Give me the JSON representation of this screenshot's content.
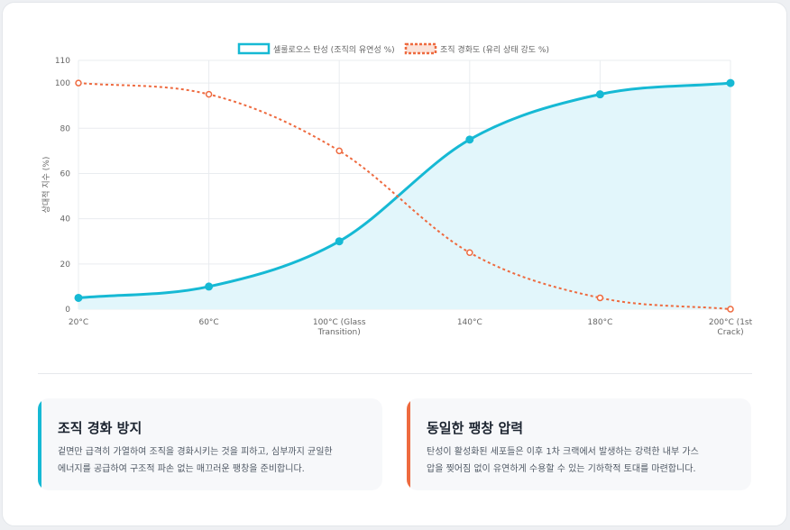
{
  "colors": {
    "elasticity": "#16b9d4",
    "elasticity_fill": "#e2f6fb",
    "hardening": "#ee6a3f",
    "grid": "#e9ecef",
    "axis_text": "#666666",
    "card1_accent": "#16b9d4",
    "card2_accent": "#ee6a3f"
  },
  "chart_data": {
    "type": "line",
    "title": "",
    "xlabel": "",
    "ylabel": "상대적 지수 (%)",
    "categories": [
      "20°C",
      "60°C",
      "100°C (Glass Transition)",
      "140°C",
      "180°C",
      "200°C (1st Crack)"
    ],
    "x_tick_lines": [
      [
        "20°C"
      ],
      [
        "60°C"
      ],
      [
        "100°C (Glass",
        "Transition)"
      ],
      [
        "140°C"
      ],
      [
        "180°C"
      ],
      [
        "200°C (1st",
        "Crack)"
      ]
    ],
    "ylim": [
      0,
      110
    ],
    "yticks": [
      0,
      20,
      40,
      60,
      80,
      100,
      110
    ],
    "grid": true,
    "legend_position": "top",
    "series": [
      {
        "name": "셀룰로오스 탄성 (조직의 유연성 %)",
        "values": [
          5,
          10,
          30,
          75,
          95,
          100
        ],
        "style": "solid-filled"
      },
      {
        "name": "조직 경화도 (유리 상태 강도 %)",
        "values": [
          100,
          95,
          70,
          25,
          5,
          0
        ],
        "style": "dashed"
      }
    ]
  },
  "cards": [
    {
      "title": "조직 경화 방지",
      "lines": [
        "겉면만 급격히 가열하여 조직을 경화시키는 것을 피하고, 심부까지 균일한",
        "에너지를 공급하여 구조적 파손 없는 매끄러운 팽창을 준비합니다."
      ]
    },
    {
      "title": "동일한 팽창 압력",
      "lines": [
        "탄성이 활성화된 세포들은 이후 1차 크랙에서 발생하는 강력한 내부 가스",
        "압을 찢어짐 없이 유연하게 수용할 수 있는 기하학적 토대를 마련합니다."
      ]
    }
  ]
}
